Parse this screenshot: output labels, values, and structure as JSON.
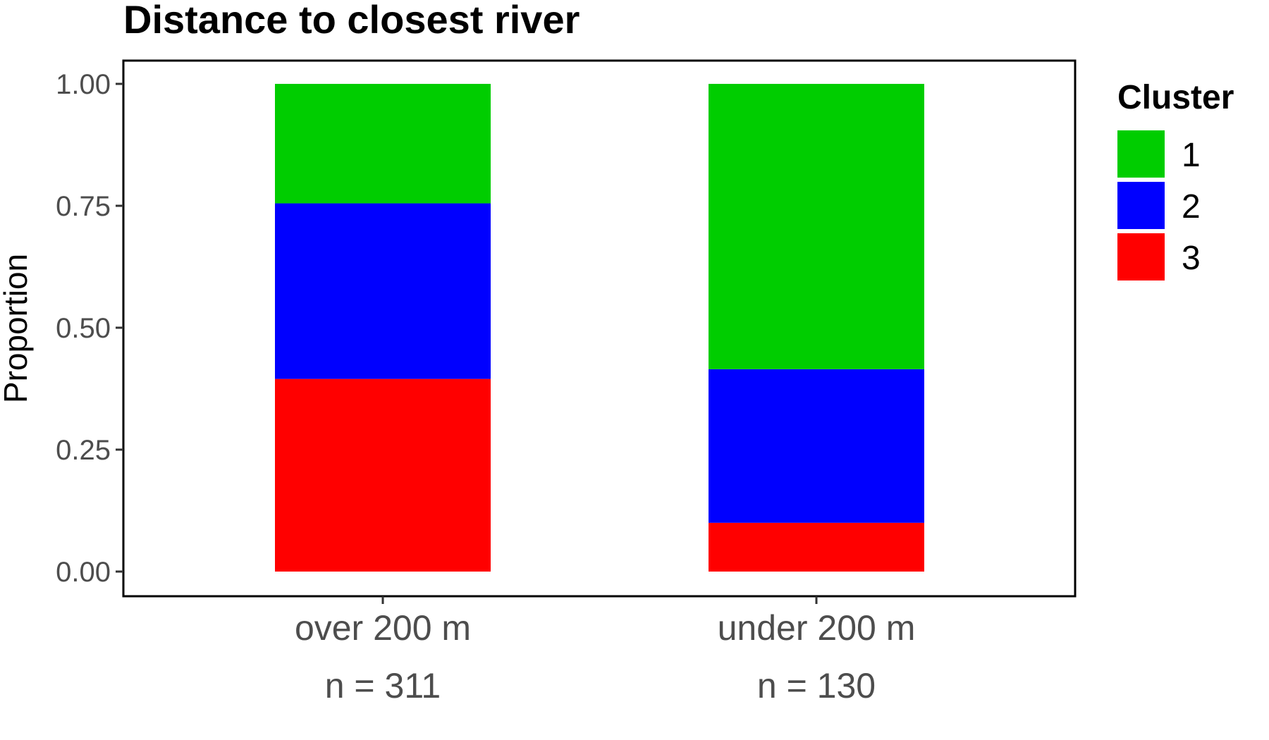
{
  "chart_data": {
    "type": "bar",
    "stacked": true,
    "title": "Distance to closest river",
    "xlabel": "",
    "ylabel": "Proportion",
    "ylim": [
      0,
      1
    ],
    "yticks": [
      "0.00",
      "0.25",
      "0.50",
      "0.75",
      "1.00"
    ],
    "categories": [
      "over 200 m",
      "under 200 m"
    ],
    "category_counts": [
      "n = 311",
      "n = 130"
    ],
    "legend": {
      "title": "Cluster",
      "position": "right"
    },
    "series": [
      {
        "name": "1",
        "color": "#00cd00",
        "values": [
          0.245,
          0.585
        ]
      },
      {
        "name": "2",
        "color": "#0000ff",
        "values": [
          0.36,
          0.315
        ]
      },
      {
        "name": "3",
        "color": "#ff0000",
        "values": [
          0.395,
          0.1
        ]
      }
    ],
    "grid": false
  }
}
